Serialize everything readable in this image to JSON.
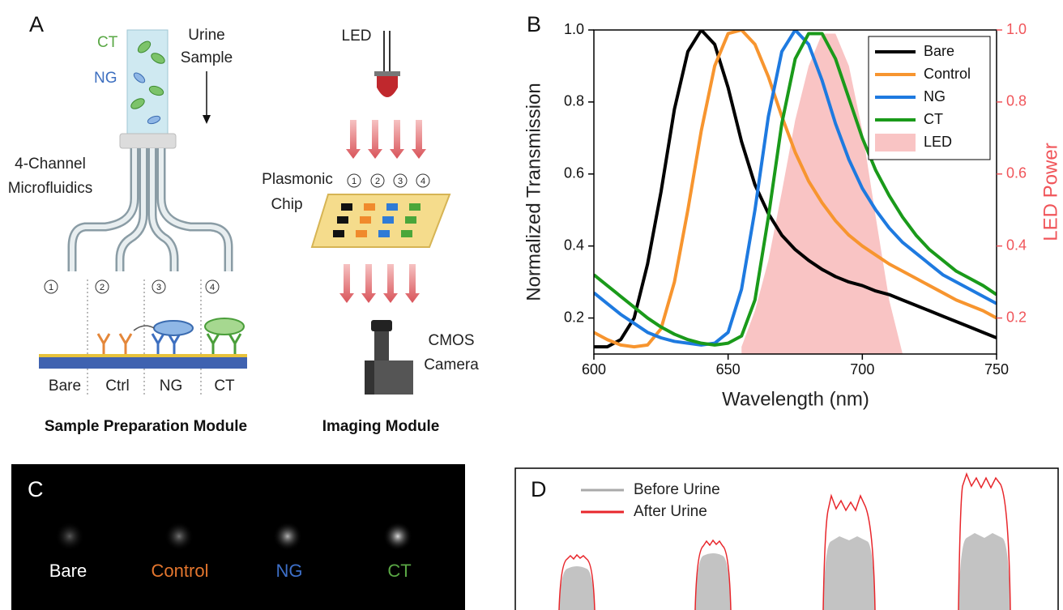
{
  "panels": {
    "a": {
      "label": "A",
      "ct": "CT",
      "ng": "NG",
      "urine": [
        "Urine",
        "Sample"
      ],
      "microfluidics": [
        "4-Channel",
        "Microfluidics"
      ],
      "channels": [
        "1",
        "2",
        "3",
        "4"
      ],
      "surfaces": [
        "Bare",
        "Ctrl",
        "NG",
        "CT"
      ],
      "prep_module": "Sample Preparation Module",
      "led": "LED",
      "chip": [
        "Plasmonic",
        "Chip"
      ],
      "spots": [
        "1",
        "2",
        "3",
        "4"
      ],
      "camera": [
        "CMOS",
        "Camera"
      ],
      "imaging_module": "Imaging Module"
    },
    "b": {
      "label": "B"
    },
    "c": {
      "label": "C",
      "spots": [
        "Bare",
        "Control",
        "NG",
        "CT"
      ]
    },
    "d": {
      "label": "D",
      "legend": [
        "Before Urine",
        "After Urine"
      ]
    }
  },
  "chart_data": {
    "type": "line",
    "x_label": "Wavelength (nm)",
    "y_label": "Normalized Transmission",
    "y2_label": "LED Power",
    "x": [
      600,
      605,
      610,
      615,
      620,
      625,
      630,
      635,
      640,
      645,
      650,
      655,
      660,
      665,
      670,
      675,
      680,
      685,
      690,
      695,
      700,
      705,
      710,
      715,
      720,
      725,
      730,
      735,
      740,
      745,
      750
    ],
    "xlim": [
      600,
      750
    ],
    "xticks": [
      600,
      650,
      700,
      750
    ],
    "ylim": [
      0.1,
      1.0
    ],
    "yticks": [
      0.2,
      0.4,
      0.6,
      0.8,
      {
        "value": 1,
        "label": "1.0"
      }
    ],
    "y2lim": [
      0.1,
      1.0
    ],
    "y2ticks": [
      0.2,
      0.4,
      0.6,
      0.8,
      {
        "value": 1,
        "label": "1.0"
      }
    ],
    "legend": "upper right",
    "series": [
      {
        "name": "Bare",
        "color": "#000000",
        "values": [
          0.12,
          0.12,
          0.14,
          0.2,
          0.35,
          0.55,
          0.78,
          0.94,
          1.0,
          0.96,
          0.84,
          0.69,
          0.57,
          0.49,
          0.43,
          0.39,
          0.36,
          0.335,
          0.315,
          0.3,
          0.29,
          0.275,
          0.265,
          0.25,
          0.235,
          0.22,
          0.205,
          0.19,
          0.175,
          0.16,
          0.145
        ]
      },
      {
        "name": "Control",
        "color": "#f7952f",
        "values": [
          0.16,
          0.14,
          0.125,
          0.12,
          0.125,
          0.17,
          0.3,
          0.5,
          0.72,
          0.9,
          0.99,
          1.0,
          0.96,
          0.87,
          0.76,
          0.66,
          0.58,
          0.52,
          0.47,
          0.43,
          0.4,
          0.375,
          0.35,
          0.33,
          0.31,
          0.29,
          0.27,
          0.25,
          0.235,
          0.22,
          0.2
        ]
      },
      {
        "name": "NG",
        "color": "#1e7ae0",
        "values": [
          0.27,
          0.24,
          0.21,
          0.185,
          0.16,
          0.145,
          0.135,
          0.13,
          0.125,
          0.13,
          0.16,
          0.28,
          0.5,
          0.76,
          0.94,
          1.0,
          0.96,
          0.86,
          0.74,
          0.64,
          0.56,
          0.5,
          0.45,
          0.41,
          0.38,
          0.35,
          0.32,
          0.3,
          0.28,
          0.26,
          0.24
        ]
      },
      {
        "name": "CT",
        "color": "#1a9a1a",
        "values": [
          0.32,
          0.29,
          0.26,
          0.23,
          0.2,
          0.175,
          0.155,
          0.14,
          0.13,
          0.125,
          0.13,
          0.15,
          0.25,
          0.48,
          0.74,
          0.92,
          0.99,
          0.99,
          0.92,
          0.81,
          0.7,
          0.61,
          0.54,
          0.48,
          0.43,
          0.39,
          0.36,
          0.33,
          0.31,
          0.29,
          0.265
        ]
      },
      {
        "name": "LED",
        "color": "#f9c4c4",
        "axis": "y2",
        "style": "area",
        "values": [
          null,
          null,
          null,
          null,
          null,
          null,
          null,
          null,
          null,
          null,
          null,
          0.12,
          0.22,
          0.36,
          0.55,
          0.75,
          0.9,
          0.99,
          0.99,
          0.9,
          0.72,
          0.48,
          0.25,
          0.1,
          null,
          null,
          null,
          null,
          null,
          null,
          null
        ]
      }
    ]
  }
}
